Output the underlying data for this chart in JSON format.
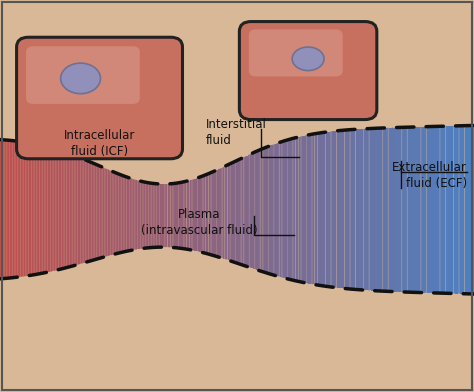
{
  "bg_color": "#D8B896",
  "vessel_color_left": "#C05050",
  "vessel_color_right": "#5080C0",
  "cell_fill_light": "#D4907A",
  "cell_fill_dark": "#C07060",
  "cell_outline": "#222222",
  "nucleus_fill": "#9090BB",
  "nucleus_outline": "#707090",
  "dashed_color": "#111111",
  "text_color": "#111111",
  "annotation_line_color": "#111111",
  "border_color": "#555555",
  "labels": {
    "icf": "Intracellular\nfluid (ICF)",
    "interstitial": "Interstitial\nfluid",
    "ecf": "Extracellular\nfluid (ECF)",
    "plasma": "Plasma\n(intravascular fluid)"
  }
}
